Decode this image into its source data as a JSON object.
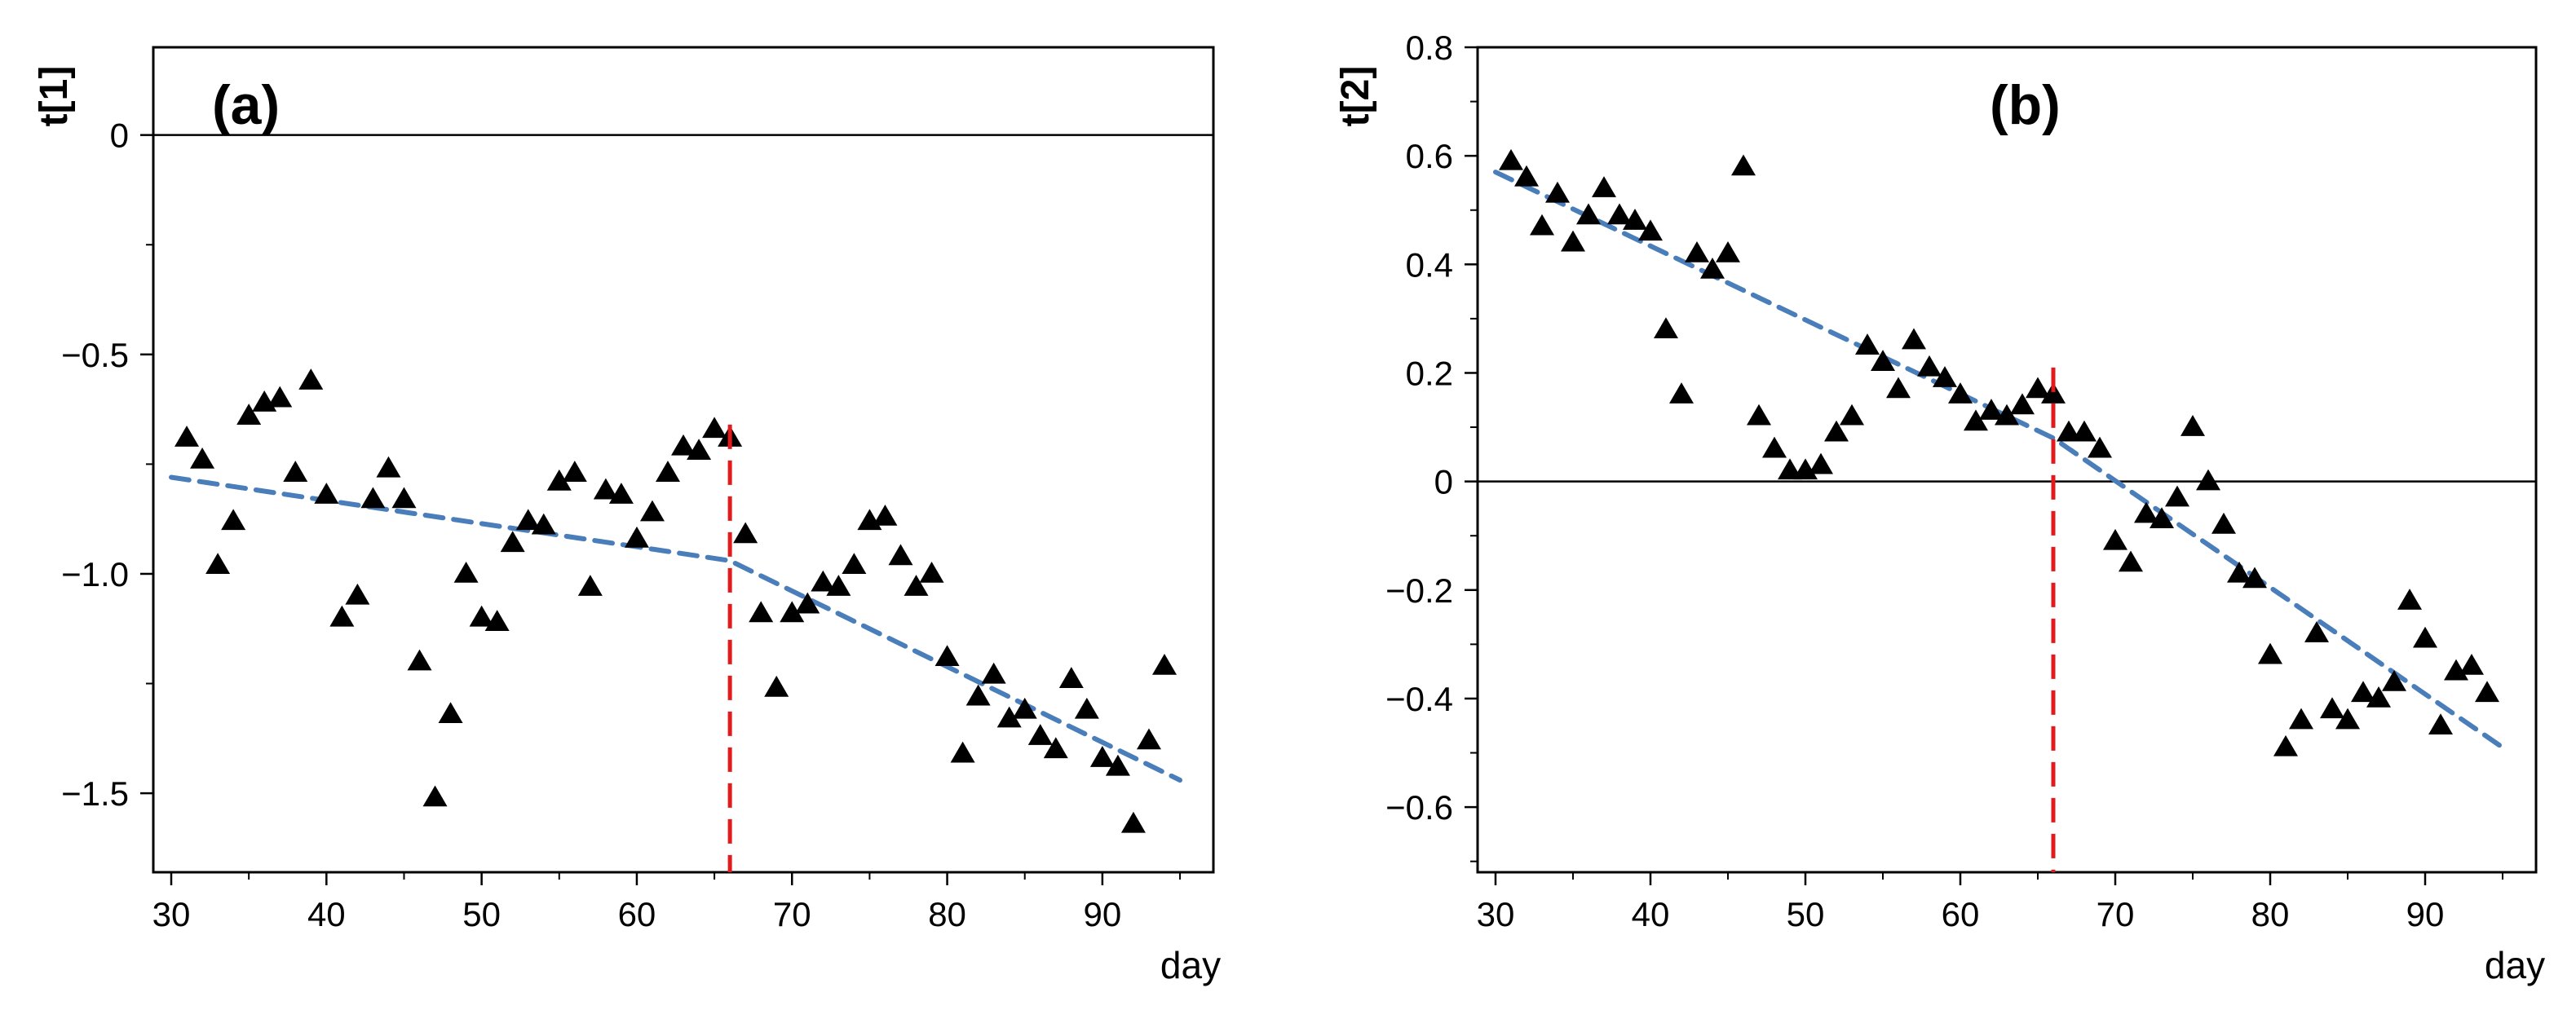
{
  "chart_data": [
    {
      "type": "scatter",
      "panel_label": "(a)",
      "xlabel": "day",
      "ylabel": "t[1]",
      "xlim": [
        29,
        96
      ],
      "ylim": [
        -1.68,
        0.2
      ],
      "x_ticks": [
        30,
        40,
        50,
        60,
        70,
        80,
        90
      ],
      "y_ticks": [
        0,
        -0.5,
        -1.0,
        -1.5
      ],
      "y_tick_labels": [
        "0",
        "−0.5",
        "−1.0",
        "−1.5"
      ],
      "y_minor_ticks": [
        -0.25,
        -0.75,
        -1.25
      ],
      "zero_line": 0,
      "split_day": 66,
      "colors": {
        "points": "#000000",
        "trend": "#4a7ebb",
        "split": "#e31a1c"
      },
      "points": [
        [
          31,
          -0.69
        ],
        [
          32,
          -0.74
        ],
        [
          33,
          -0.98
        ],
        [
          34,
          -0.88
        ],
        [
          35,
          -0.64
        ],
        [
          36,
          -0.61
        ],
        [
          37,
          -0.6
        ],
        [
          38,
          -0.77
        ],
        [
          39,
          -0.56
        ],
        [
          40,
          -0.82
        ],
        [
          41,
          -1.1
        ],
        [
          42,
          -1.05
        ],
        [
          43,
          -0.83
        ],
        [
          44,
          -0.76
        ],
        [
          45,
          -0.83
        ],
        [
          46,
          -1.2
        ],
        [
          47,
          -1.51
        ],
        [
          48,
          -1.32
        ],
        [
          49,
          -1.0
        ],
        [
          50,
          -1.1
        ],
        [
          51,
          -1.11
        ],
        [
          52,
          -0.93
        ],
        [
          53,
          -0.88
        ],
        [
          54,
          -0.89
        ],
        [
          55,
          -0.79
        ],
        [
          56,
          -0.77
        ],
        [
          57,
          -1.03
        ],
        [
          58,
          -0.81
        ],
        [
          59,
          -0.82
        ],
        [
          60,
          -0.92
        ],
        [
          61,
          -0.86
        ],
        [
          62,
          -0.77
        ],
        [
          63,
          -0.71
        ],
        [
          64,
          -0.72
        ],
        [
          65,
          -0.67
        ],
        [
          66,
          -0.69
        ],
        [
          67,
          -0.91
        ],
        [
          68,
          -1.09
        ],
        [
          69,
          -1.26
        ],
        [
          70,
          -1.09
        ],
        [
          71,
          -1.07
        ],
        [
          72,
          -1.02
        ],
        [
          73,
          -1.03
        ],
        [
          74,
          -0.98
        ],
        [
          75,
          -0.88
        ],
        [
          76,
          -0.87
        ],
        [
          77,
          -0.96
        ],
        [
          78,
          -1.03
        ],
        [
          79,
          -1.0
        ],
        [
          80,
          -1.19
        ],
        [
          81,
          -1.41
        ],
        [
          82,
          -1.28
        ],
        [
          83,
          -1.23
        ],
        [
          84,
          -1.33
        ],
        [
          85,
          -1.31
        ],
        [
          86,
          -1.37
        ],
        [
          87,
          -1.4
        ],
        [
          88,
          -1.24
        ],
        [
          89,
          -1.31
        ],
        [
          90,
          -1.42
        ],
        [
          91,
          -1.44
        ],
        [
          92,
          -1.57
        ],
        [
          93,
          -1.38
        ],
        [
          94,
          -1.21
        ]
      ],
      "trend": [
        [
          30,
          -0.78
        ],
        [
          66,
          -0.97
        ],
        [
          95,
          -1.47
        ]
      ]
    },
    {
      "type": "scatter",
      "panel_label": "(b)",
      "xlabel": "day",
      "ylabel": "t[2]",
      "xlim": [
        29,
        96
      ],
      "ylim": [
        -0.72,
        0.8
      ],
      "x_ticks": [
        30,
        40,
        50,
        60,
        70,
        80,
        90
      ],
      "y_ticks": [
        0.8,
        0.6,
        0.4,
        0.2,
        0,
        -0.2,
        -0.4,
        -0.6
      ],
      "y_tick_labels": [
        "0.8",
        "0.6",
        "0.4",
        "0.2",
        "0",
        "−0.2",
        "−0.4",
        "−0.6"
      ],
      "y_minor_ticks": [
        0.7,
        0.5,
        0.3,
        0.1,
        -0.1,
        -0.3,
        -0.5,
        -0.7
      ],
      "zero_line": 0,
      "split_day": 66,
      "colors": {
        "points": "#000000",
        "trend": "#4a7ebb",
        "split": "#e31a1c"
      },
      "points": [
        [
          31,
          0.59
        ],
        [
          32,
          0.56
        ],
        [
          33,
          0.47
        ],
        [
          34,
          0.53
        ],
        [
          35,
          0.44
        ],
        [
          36,
          0.49
        ],
        [
          37,
          0.54
        ],
        [
          38,
          0.49
        ],
        [
          39,
          0.48
        ],
        [
          40,
          0.46
        ],
        [
          41,
          0.28
        ],
        [
          42,
          0.16
        ],
        [
          43,
          0.42
        ],
        [
          44,
          0.39
        ],
        [
          45,
          0.42
        ],
        [
          46,
          0.58
        ],
        [
          47,
          0.12
        ],
        [
          48,
          0.06
        ],
        [
          49,
          0.02
        ],
        [
          50,
          0.02
        ],
        [
          51,
          0.03
        ],
        [
          52,
          0.09
        ],
        [
          53,
          0.12
        ],
        [
          54,
          0.25
        ],
        [
          55,
          0.22
        ],
        [
          56,
          0.17
        ],
        [
          57,
          0.26
        ],
        [
          58,
          0.21
        ],
        [
          59,
          0.19
        ],
        [
          60,
          0.16
        ],
        [
          61,
          0.11
        ],
        [
          62,
          0.13
        ],
        [
          63,
          0.12
        ],
        [
          64,
          0.14
        ],
        [
          65,
          0.17
        ],
        [
          66,
          0.16
        ],
        [
          67,
          0.09
        ],
        [
          68,
          0.09
        ],
        [
          69,
          0.06
        ],
        [
          70,
          -0.11
        ],
        [
          71,
          -0.15
        ],
        [
          72,
          -0.06
        ],
        [
          73,
          -0.07
        ],
        [
          74,
          -0.03
        ],
        [
          75,
          0.1
        ],
        [
          76,
          0.0
        ],
        [
          77,
          -0.08
        ],
        [
          78,
          -0.17
        ],
        [
          79,
          -0.18
        ],
        [
          80,
          -0.32
        ],
        [
          81,
          -0.49
        ],
        [
          82,
          -0.44
        ],
        [
          83,
          -0.28
        ],
        [
          84,
          -0.42
        ],
        [
          85,
          -0.44
        ],
        [
          86,
          -0.39
        ],
        [
          87,
          -0.4
        ],
        [
          88,
          -0.37
        ],
        [
          89,
          -0.22
        ],
        [
          90,
          -0.29
        ],
        [
          91,
          -0.45
        ],
        [
          92,
          -0.35
        ],
        [
          93,
          -0.34
        ],
        [
          94,
          -0.39
        ]
      ],
      "trend": [
        [
          30,
          0.57
        ],
        [
          66,
          0.08
        ],
        [
          95,
          -0.49
        ]
      ]
    }
  ]
}
